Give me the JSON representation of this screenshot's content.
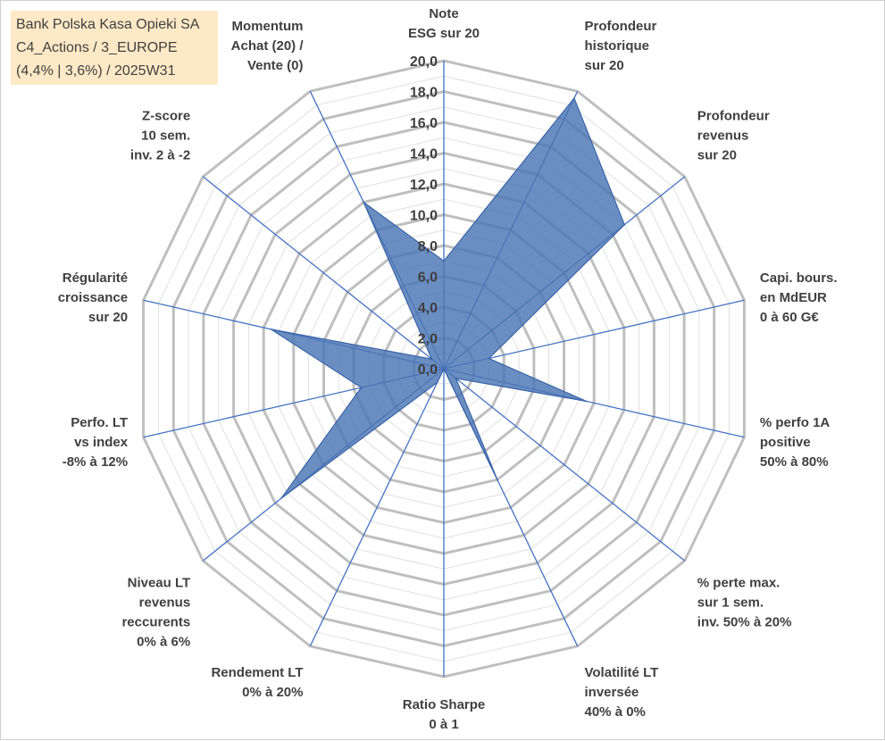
{
  "title_lines": [
    "Bank Polska Kasa Opieki SA",
    "C4_Actions / 3_EUROPE",
    "(4,4% | 3,6%) / 2025W31"
  ],
  "colors": {
    "grid_major": "#bfbfbf",
    "grid_minor": "#e0e0e0",
    "spoke": "#4472c4",
    "fill": "#4a75b5",
    "stroke": "#3a64a8"
  },
  "chart_data": {
    "type": "radar",
    "title": "",
    "rlim": [
      0,
      20
    ],
    "grid": true,
    "ticks": [
      "0,0",
      "2,0",
      "4,0",
      "6,0",
      "8,0",
      "10,0",
      "12,0",
      "14,0",
      "16,0",
      "18,0",
      "20,0"
    ],
    "tick_values": [
      0,
      2,
      4,
      6,
      8,
      10,
      12,
      14,
      16,
      18,
      20
    ],
    "axes": [
      {
        "label": [
          "Note",
          "ESG sur 20"
        ],
        "value": 7.0
      },
      {
        "label": [
          "Profondeur",
          "historique",
          "sur 20"
        ],
        "value": 19.5
      },
      {
        "label": [
          "Profondeur",
          "revenus",
          "sur 20"
        ],
        "value": 15.0
      },
      {
        "label": [
          "Capi. bours.",
          "en MdEUR",
          "0 à 60 G€"
        ],
        "value": 3.0
      },
      {
        "label": [
          "% perfo 1A",
          "positive",
          "50% à 80%"
        ],
        "value": 9.5
      },
      {
        "label": [
          "% perte max.",
          "sur 1 sem.",
          "inv. 50% à 20%"
        ],
        "value": 1.0
      },
      {
        "label": [
          "Volatilité LT",
          "inversée",
          "40% à 0%"
        ],
        "value": 8.0
      },
      {
        "label": [
          "Ratio Sharpe",
          "0 à 1"
        ],
        "value": 0.0
      },
      {
        "label": [
          "Rendement LT",
          "0% à 20%"
        ],
        "value": 1.0
      },
      {
        "label": [
          "Niveau LT",
          "revenus",
          "reccurents",
          "0% à 6%"
        ],
        "value": 13.5
      },
      {
        "label": [
          "Perfo. LT",
          "vs index",
          "-8% à 12%"
        ],
        "value": 5.5
      },
      {
        "label": [
          "Régularité",
          "croissance",
          "sur 20"
        ],
        "value": 11.5
      },
      {
        "label": [
          "Z-score",
          "10 sem.",
          "inv. 2 à -2"
        ],
        "value": 1.0
      },
      {
        "label": [
          "Momentum",
          "Achat (20) /",
          "Vente (0)"
        ],
        "value": 12.0
      }
    ]
  }
}
